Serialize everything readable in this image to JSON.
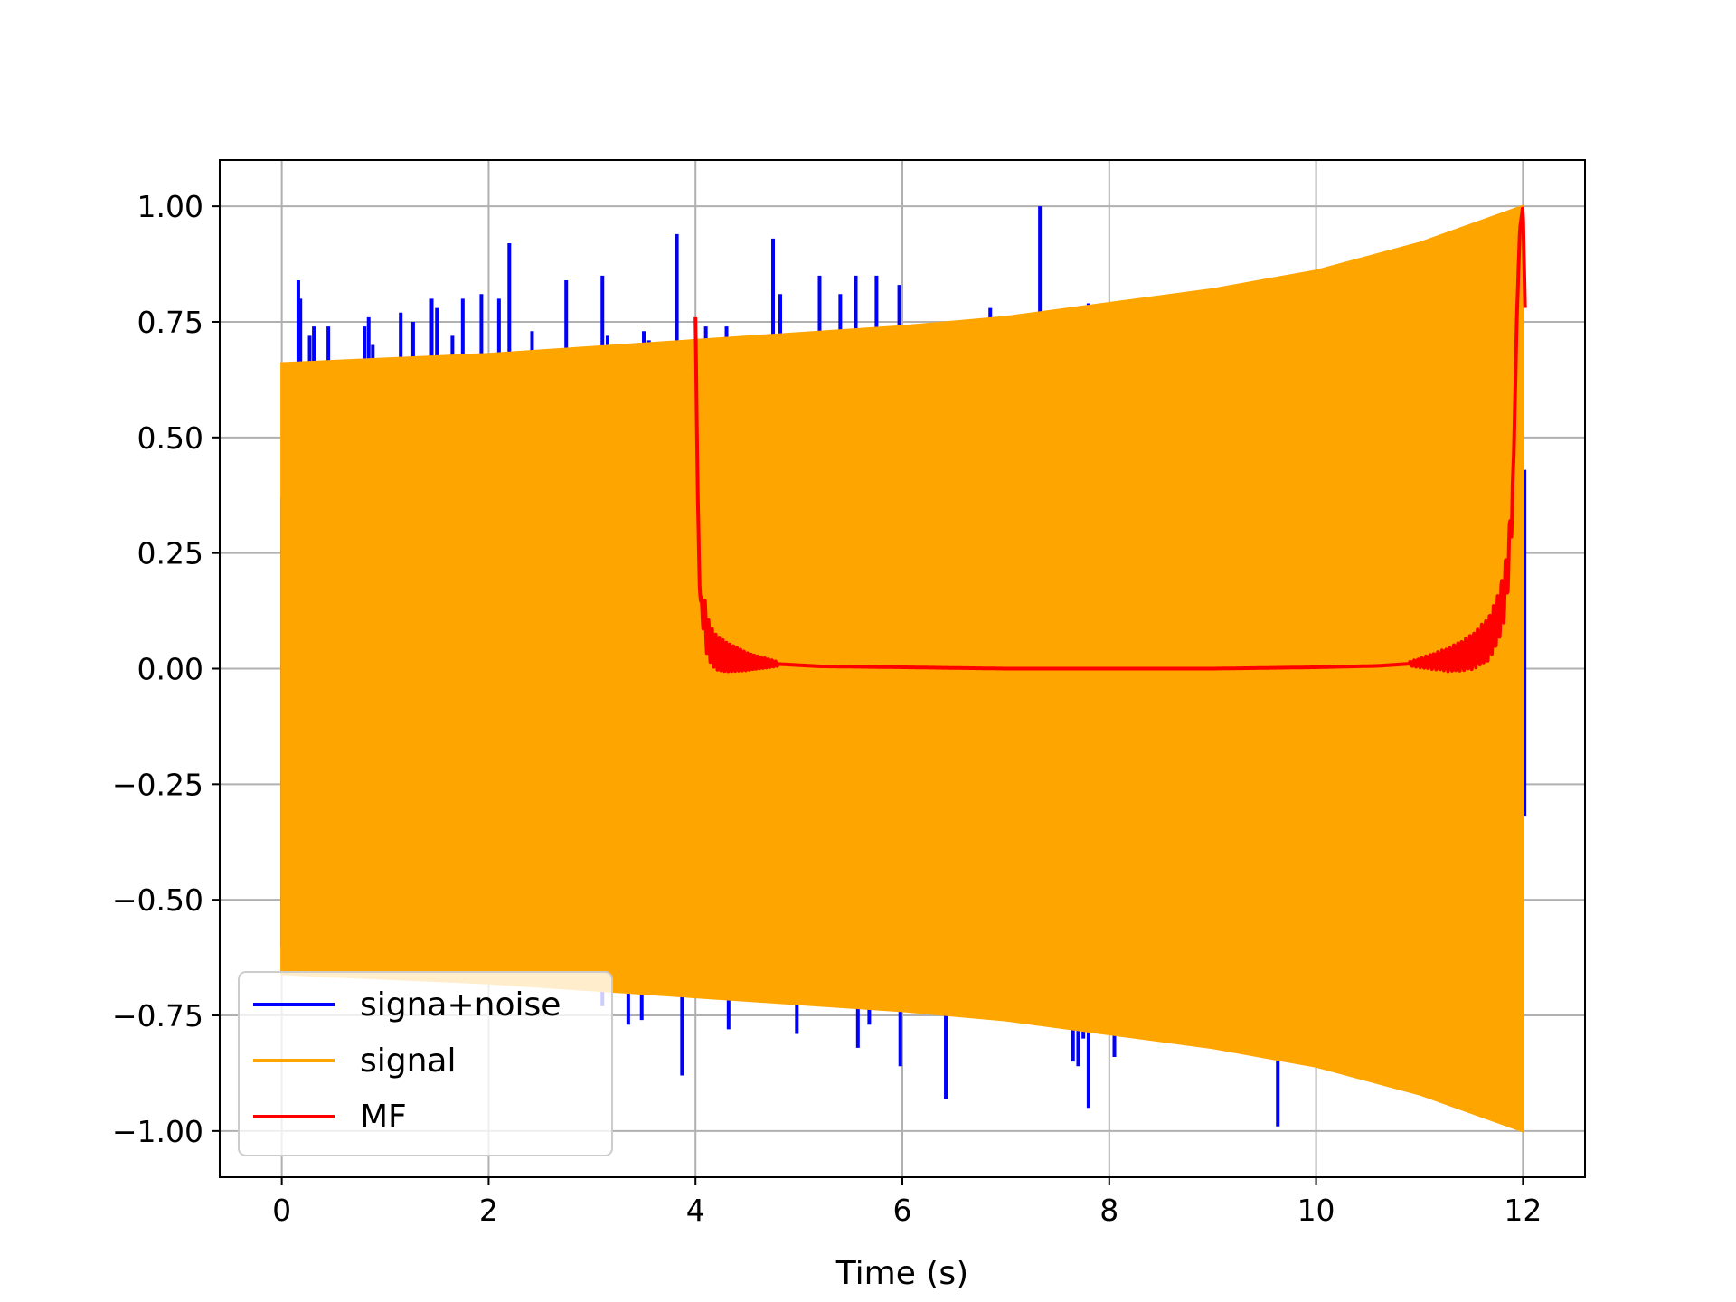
{
  "chart_data": {
    "type": "line",
    "title": "",
    "xlabel": "Time (s)",
    "ylabel": "",
    "xlim": [
      -0.6,
      12.6
    ],
    "ylim": [
      -1.1,
      1.1
    ],
    "x_ticks": [
      0,
      2,
      4,
      6,
      8,
      10,
      12
    ],
    "x_tick_labels": [
      "0",
      "2",
      "4",
      "6",
      "8",
      "10",
      "12"
    ],
    "y_ticks": [
      1.0,
      0.75,
      0.5,
      0.25,
      0.0,
      -0.25,
      -0.5,
      -0.75,
      -1.0
    ],
    "y_tick_labels": [
      "1.00",
      "0.75",
      "0.50",
      "0.25",
      "0.00",
      "−0.25",
      "−0.50",
      "−0.75",
      "−1.00"
    ],
    "grid": true,
    "legend": {
      "position": "lower-left",
      "entries": [
        {
          "label": "signa+noise",
          "color": "#0000ff"
        },
        {
          "label": "signal",
          "color": "#ffa500"
        },
        {
          "label": "MF",
          "color": "#ff0000"
        }
      ]
    },
    "series": [
      {
        "name": "signa+noise",
        "color": "#0000ff",
        "kind": "spikes",
        "spikes": [
          [
            0.16,
            0.84
          ],
          [
            0.18,
            0.8
          ],
          [
            0.27,
            0.72
          ],
          [
            0.31,
            0.74
          ],
          [
            0.45,
            0.74
          ],
          [
            0.8,
            0.74
          ],
          [
            0.84,
            0.76
          ],
          [
            0.88,
            0.7
          ],
          [
            1.15,
            0.77
          ],
          [
            1.27,
            0.75
          ],
          [
            1.45,
            0.8
          ],
          [
            1.5,
            0.78
          ],
          [
            1.65,
            0.72
          ],
          [
            1.75,
            0.8
          ],
          [
            1.93,
            0.81
          ],
          [
            2.1,
            0.8
          ],
          [
            2.2,
            0.92
          ],
          [
            2.42,
            0.73
          ],
          [
            2.75,
            0.84
          ],
          [
            3.1,
            0.85
          ],
          [
            3.15,
            0.72
          ],
          [
            3.5,
            0.73
          ],
          [
            3.55,
            0.71
          ],
          [
            3.82,
            0.94
          ],
          [
            4.1,
            0.74
          ],
          [
            4.3,
            0.74
          ],
          [
            4.75,
            0.93
          ],
          [
            4.82,
            0.81
          ],
          [
            5.2,
            0.85
          ],
          [
            5.4,
            0.81
          ],
          [
            5.55,
            0.85
          ],
          [
            5.75,
            0.85
          ],
          [
            5.97,
            0.83
          ],
          [
            6.85,
            0.78
          ],
          [
            7.33,
            1.0
          ],
          [
            7.8,
            0.79
          ],
          [
            3.1,
            -0.73
          ],
          [
            3.35,
            -0.77
          ],
          [
            3.48,
            -0.76
          ],
          [
            3.87,
            -0.88
          ],
          [
            4.32,
            -0.78
          ],
          [
            4.98,
            -0.79
          ],
          [
            5.57,
            -0.82
          ],
          [
            5.68,
            -0.77
          ],
          [
            5.98,
            -0.86
          ],
          [
            6.42,
            -0.93
          ],
          [
            7.65,
            -0.85
          ],
          [
            7.7,
            -0.86
          ],
          [
            7.75,
            -0.8
          ],
          [
            7.8,
            -0.95
          ],
          [
            8.05,
            -0.84
          ],
          [
            9.63,
            -0.99
          ]
        ]
      },
      {
        "name": "signal",
        "color": "#ffa500",
        "kind": "envelope",
        "x": [
          0,
          1,
          2,
          3,
          4,
          5,
          6,
          7,
          8,
          9,
          10,
          11,
          12
        ],
        "upper": [
          0.66,
          0.67,
          0.68,
          0.695,
          0.71,
          0.725,
          0.74,
          0.76,
          0.79,
          0.82,
          0.86,
          0.92,
          1.0
        ],
        "lower": [
          -0.66,
          -0.67,
          -0.68,
          -0.695,
          -0.71,
          -0.725,
          -0.74,
          -0.76,
          -0.79,
          -0.82,
          -0.86,
          -0.92,
          -1.0
        ]
      },
      {
        "name": "MF",
        "color": "#ff0000",
        "kind": "line",
        "x": [
          4.0,
          4.02,
          4.04,
          4.06,
          4.08,
          4.1,
          4.15,
          4.2,
          4.3,
          4.5,
          4.8,
          5.2,
          6.0,
          7.0,
          8.0,
          9.0,
          10.0,
          10.6,
          11.0,
          11.3,
          11.5,
          11.65,
          11.75,
          11.82,
          11.87,
          11.91,
          11.94,
          11.97,
          12.0,
          12.02
        ],
        "y": [
          0.76,
          0.4,
          0.18,
          0.1,
          0.14,
          0.08,
          0.05,
          0.035,
          0.025,
          0.015,
          0.01,
          0.005,
          0.003,
          0.0,
          0.0,
          0.0,
          0.003,
          0.006,
          0.012,
          0.02,
          0.035,
          0.06,
          0.1,
          0.16,
          0.25,
          0.45,
          0.75,
          0.95,
          1.0,
          0.78
        ],
        "ripple": [
          {
            "from": 4.05,
            "to": 4.8,
            "amp_start": 0.045,
            "amp_end": 0.004,
            "cycles": 22
          },
          {
            "from": 10.9,
            "to": 11.9,
            "amp_start": 0.004,
            "amp_end": 0.06,
            "cycles": 26
          }
        ]
      }
    ]
  }
}
